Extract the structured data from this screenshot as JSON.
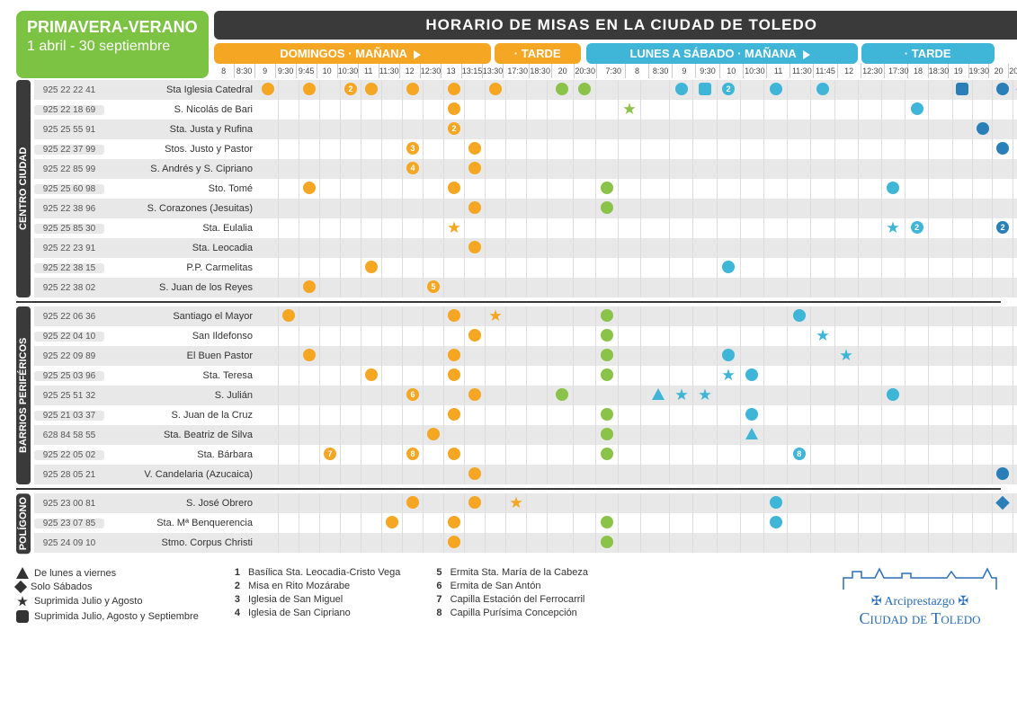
{
  "season": {
    "title": "PRIMAVERA-VERANO",
    "range": "1 abril - 30 septiembre"
  },
  "mainTitle": "HORARIO DE MISAS EN LA CIUDAD DE TOLEDO",
  "headers": {
    "dom": "DOMINGOS",
    "wk": "LUNES A SÁBADO",
    "morning": "MAÑANA",
    "afternoon": "TARDE"
  },
  "colors": {
    "orange": "#f5a623",
    "green": "#7cc243",
    "greenDot": "#8bc34a",
    "blue": "#3fb5d8",
    "blueD": "#2a7fb8",
    "dark": "#3a3a3a"
  },
  "times": {
    "dom_m": [
      "8",
      "8:30",
      "9",
      "9:30",
      "9:45",
      "10",
      "10:30",
      "11",
      "11:30",
      "12",
      "12:30",
      "13",
      "13:15",
      "13:30"
    ],
    "dom_t": [
      "17:30",
      "18:30",
      "20",
      "20:30"
    ],
    "wk_m": [
      "7:30",
      "8",
      "8:30",
      "9",
      "9:30",
      "10",
      "10:30",
      "11",
      "11:30",
      "11:45",
      "12",
      "12:30"
    ],
    "wk_t": [
      "17:30",
      "18",
      "18:30",
      "19",
      "19:30",
      "20",
      "20:30"
    ]
  },
  "colWidths": {
    "dom_m": 22,
    "dom_t": 24,
    "wk_m": 25.2,
    "wk_t": 21.4,
    "gap1": 4,
    "gap2": 6,
    "gap3": 4
  },
  "sections": [
    {
      "label": "CENTRO CIUDAD",
      "rows": [
        {
          "phone": "925 22 22 41",
          "name": "Sta Iglesia Catedral",
          "marks": [
            {
              "t": "dom_m",
              "i": 0,
              "c": "o"
            },
            {
              "t": "dom_m",
              "i": 2,
              "c": "o"
            },
            {
              "t": "dom_m",
              "i": 4,
              "c": "o",
              "n": "2"
            },
            {
              "t": "dom_m",
              "i": 5,
              "c": "o"
            },
            {
              "t": "dom_m",
              "i": 7,
              "c": "o"
            },
            {
              "t": "dom_m",
              "i": 9,
              "c": "o"
            },
            {
              "t": "dom_m",
              "i": 11,
              "c": "o"
            },
            {
              "t": "dom_t",
              "i": 0,
              "c": "g"
            },
            {
              "t": "dom_t",
              "i": 1,
              "c": "g"
            },
            {
              "t": "wk_m",
              "i": 1,
              "c": "b"
            },
            {
              "t": "wk_m",
              "i": 2,
              "c": "b",
              "s": "sq"
            },
            {
              "t": "wk_m",
              "i": 3,
              "c": "b",
              "n": "2"
            },
            {
              "t": "wk_m",
              "i": 5,
              "c": "b"
            },
            {
              "t": "wk_m",
              "i": 7,
              "c": "b"
            },
            {
              "t": "wk_t",
              "i": 1,
              "c": "bd",
              "s": "sq"
            },
            {
              "t": "wk_t",
              "i": 3,
              "c": "bd"
            },
            {
              "t": "wk_t",
              "i": 4,
              "c": "bd",
              "s": "dia",
              "n": "1"
            }
          ]
        },
        {
          "phone": "925 22 18 69",
          "name": "S. Nicolás de Bari",
          "marks": [
            {
              "t": "dom_m",
              "i": 9,
              "c": "o"
            },
            {
              "t": "dom_t",
              "i": 3,
              "c": "g",
              "s": "star"
            },
            {
              "t": "wk_m",
              "i": 11,
              "c": "b"
            },
            {
              "t": "wk_t",
              "i": 6,
              "c": "bd",
              "s": "star"
            }
          ]
        },
        {
          "phone": "925 25 55 91",
          "name": "Sta. Justa y Rufina",
          "marks": [
            {
              "t": "dom_m",
              "i": 9,
              "c": "o",
              "n": "2"
            },
            {
              "t": "wk_t",
              "i": 2,
              "c": "bd"
            }
          ]
        },
        {
          "phone": "925 22 37 99",
          "name": "Stos. Justo y Pastor",
          "marks": [
            {
              "t": "dom_m",
              "i": 7,
              "c": "o",
              "n": "3"
            },
            {
              "t": "dom_m",
              "i": 10,
              "c": "o"
            },
            {
              "t": "wk_t",
              "i": 3,
              "c": "bd"
            }
          ]
        },
        {
          "phone": "925 22 85 99",
          "name": "S. Andrés y S. Cipriano",
          "marks": [
            {
              "t": "dom_m",
              "i": 7,
              "c": "o",
              "n": "4"
            },
            {
              "t": "dom_m",
              "i": 10,
              "c": "o"
            },
            {
              "t": "wk_t",
              "i": 4,
              "c": "bd"
            }
          ]
        },
        {
          "phone": "925 25 60 98",
          "name": "Sto. Tomé",
          "marks": [
            {
              "t": "dom_m",
              "i": 2,
              "c": "o"
            },
            {
              "t": "dom_m",
              "i": 9,
              "c": "o"
            },
            {
              "t": "dom_t",
              "i": 2,
              "c": "g"
            },
            {
              "t": "wk_m",
              "i": 10,
              "c": "b"
            },
            {
              "t": "wk_t",
              "i": 5,
              "c": "bd"
            }
          ]
        },
        {
          "phone": "925 22 38 96",
          "name": "S. Corazones (Jesuitas)",
          "marks": [
            {
              "t": "dom_m",
              "i": 10,
              "c": "o"
            },
            {
              "t": "dom_t",
              "i": 2,
              "c": "g"
            },
            {
              "t": "wk_t",
              "i": 5,
              "c": "bd"
            }
          ]
        },
        {
          "phone": "925 25 85 30",
          "name": "Sta. Eulalia",
          "marks": [
            {
              "t": "dom_m",
              "i": 9,
              "c": "o",
              "n": "2",
              "s": "star"
            },
            {
              "t": "wk_m",
              "i": 10,
              "c": "b",
              "s": "star"
            },
            {
              "t": "wk_m",
              "i": 11,
              "c": "b",
              "n": "2"
            },
            {
              "t": "wk_t",
              "i": 3,
              "c": "bd",
              "n": "2"
            }
          ]
        },
        {
          "phone": "925 22 23 91",
          "name": "Sta. Leocadia",
          "marks": [
            {
              "t": "dom_m",
              "i": 10,
              "c": "o"
            }
          ]
        },
        {
          "phone": "925 22 38 15",
          "name": "P.P. Carmelitas",
          "marks": [
            {
              "t": "dom_m",
              "i": 5,
              "c": "o"
            },
            {
              "t": "wk_m",
              "i": 3,
              "c": "b"
            }
          ]
        },
        {
          "phone": "925 22 38 02",
          "name": "S. Juan de los Reyes",
          "marks": [
            {
              "t": "dom_m",
              "i": 2,
              "c": "o"
            },
            {
              "t": "dom_m",
              "i": 8,
              "c": "o",
              "n": "5"
            },
            {
              "t": "wk_t",
              "i": 5,
              "c": "bd"
            }
          ]
        }
      ]
    },
    {
      "label": "BARRIOS PERIFÉRICOS",
      "rows": [
        {
          "phone": "925 22 06 36",
          "name": "Santiago el Mayor",
          "marks": [
            {
              "t": "dom_m",
              "i": 1,
              "c": "o"
            },
            {
              "t": "dom_m",
              "i": 9,
              "c": "o"
            },
            {
              "t": "dom_m",
              "i": 11,
              "c": "o",
              "s": "star"
            },
            {
              "t": "dom_t",
              "i": 2,
              "c": "g"
            },
            {
              "t": "wk_m",
              "i": 6,
              "c": "b"
            },
            {
              "t": "wk_t",
              "i": 5,
              "c": "bd"
            }
          ]
        },
        {
          "phone": "925 22 04 10",
          "name": "San Ildefonso",
          "marks": [
            {
              "t": "dom_m",
              "i": 10,
              "c": "o"
            },
            {
              "t": "dom_t",
              "i": 2,
              "c": "g"
            },
            {
              "t": "wk_m",
              "i": 7,
              "c": "b",
              "s": "star"
            },
            {
              "t": "wk_t",
              "i": 5,
              "c": "bd"
            }
          ]
        },
        {
          "phone": "925 22 09 89",
          "name": "El Buen Pastor",
          "marks": [
            {
              "t": "dom_m",
              "i": 2,
              "c": "o"
            },
            {
              "t": "dom_m",
              "i": 9,
              "c": "o"
            },
            {
              "t": "dom_t",
              "i": 2,
              "c": "g"
            },
            {
              "t": "wk_m",
              "i": 3,
              "c": "b"
            },
            {
              "t": "wk_m",
              "i": 8,
              "c": "b",
              "s": "star"
            },
            {
              "t": "wk_t",
              "i": 5,
              "c": "bd"
            }
          ]
        },
        {
          "phone": "925 25 03 96",
          "name": "Sta. Teresa",
          "marks": [
            {
              "t": "dom_m",
              "i": 5,
              "c": "o"
            },
            {
              "t": "dom_m",
              "i": 9,
              "c": "o"
            },
            {
              "t": "dom_t",
              "i": 2,
              "c": "g"
            },
            {
              "t": "wk_m",
              "i": 3,
              "c": "b",
              "s": "star"
            },
            {
              "t": "wk_m",
              "i": 4,
              "c": "b"
            },
            {
              "t": "wk_t",
              "i": 5,
              "c": "bd"
            }
          ]
        },
        {
          "phone": "925 25 51 32",
          "name": "S. Julián",
          "marks": [
            {
              "t": "dom_m",
              "i": 7,
              "c": "o",
              "n": "6"
            },
            {
              "t": "dom_m",
              "i": 10,
              "c": "o"
            },
            {
              "t": "dom_t",
              "i": 0,
              "c": "g"
            },
            {
              "t": "wk_m",
              "i": 0,
              "c": "b",
              "s": "tri"
            },
            {
              "t": "wk_m",
              "i": 1,
              "c": "b",
              "s": "star"
            },
            {
              "t": "wk_m",
              "i": 2,
              "c": "b",
              "s": "star"
            },
            {
              "t": "wk_m",
              "i": 10,
              "c": "b"
            },
            {
              "t": "wk_t",
              "i": 5,
              "c": "bd"
            }
          ]
        },
        {
          "phone": "925 21 03 37",
          "name": "S. Juan de la Cruz",
          "marks": [
            {
              "t": "dom_m",
              "i": 9,
              "c": "o"
            },
            {
              "t": "dom_t",
              "i": 2,
              "c": "g"
            },
            {
              "t": "wk_m",
              "i": 4,
              "c": "b"
            },
            {
              "t": "wk_t",
              "i": 5,
              "c": "bd"
            }
          ]
        },
        {
          "phone": "628 84 58 55",
          "name": "Sta. Beatriz de Silva",
          "marks": [
            {
              "t": "dom_m",
              "i": 8,
              "c": "o"
            },
            {
              "t": "dom_t",
              "i": 2,
              "c": "g"
            },
            {
              "t": "wk_m",
              "i": 4,
              "c": "b",
              "s": "tri"
            },
            {
              "t": "wk_t",
              "i": 5,
              "c": "bd"
            }
          ]
        },
        {
          "phone": "925 22 05 02",
          "name": "Sta. Bárbara",
          "marks": [
            {
              "t": "dom_m",
              "i": 3,
              "c": "o",
              "n": "7"
            },
            {
              "t": "dom_m",
              "i": 7,
              "c": "o",
              "n": "8"
            },
            {
              "t": "dom_m",
              "i": 9,
              "c": "o"
            },
            {
              "t": "dom_t",
              "i": 2,
              "c": "g"
            },
            {
              "t": "wk_m",
              "i": 6,
              "c": "b",
              "n": "8"
            },
            {
              "t": "wk_t",
              "i": 5,
              "c": "bd"
            }
          ]
        },
        {
          "phone": "925 28 05 21",
          "name": "V. Candelaria (Azucaica)",
          "marks": [
            {
              "t": "dom_m",
              "i": 10,
              "c": "o"
            },
            {
              "t": "wk_t",
              "i": 3,
              "c": "bd"
            }
          ]
        }
      ]
    },
    {
      "label": "POLÍGONO",
      "rows": [
        {
          "phone": "925 23 00 81",
          "name": "S. José Obrero",
          "marks": [
            {
              "t": "dom_m",
              "i": 7,
              "c": "o"
            },
            {
              "t": "dom_m",
              "i": 10,
              "c": "o"
            },
            {
              "t": "dom_m",
              "i": 12,
              "c": "o",
              "s": "star"
            },
            {
              "t": "wk_m",
              "i": 5,
              "c": "b"
            },
            {
              "t": "wk_t",
              "i": 3,
              "c": "bd",
              "s": "dia"
            }
          ]
        },
        {
          "phone": "925 23 07 85",
          "name": "Sta. Mª Benquerencia",
          "marks": [
            {
              "t": "dom_m",
              "i": 6,
              "c": "o"
            },
            {
              "t": "dom_m",
              "i": 9,
              "c": "o"
            },
            {
              "t": "dom_t",
              "i": 2,
              "c": "g"
            },
            {
              "t": "wk_m",
              "i": 5,
              "c": "b"
            },
            {
              "t": "wk_t",
              "i": 5,
              "c": "bd"
            }
          ]
        },
        {
          "phone": "925 24 09 10",
          "name": "Stmo. Corpus Christi",
          "marks": [
            {
              "t": "dom_m",
              "i": 9,
              "c": "o"
            },
            {
              "t": "dom_t",
              "i": 2,
              "c": "g"
            },
            {
              "t": "wk_t",
              "i": 5,
              "c": "bd"
            }
          ]
        }
      ]
    }
  ],
  "legend": {
    "shapes": [
      {
        "s": "tri",
        "label": "De lunes a viernes"
      },
      {
        "s": "dia",
        "label": "Solo Sábados"
      },
      {
        "s": "star",
        "label": "Suprimida Julio y Agosto"
      },
      {
        "s": "sq",
        "label": "Suprimida Julio, Agosto y Septiembre"
      }
    ],
    "notes1": [
      {
        "n": "1",
        "label": "Basílica Sta. Leocadia-Cristo Vega"
      },
      {
        "n": "2",
        "label": "Misa en Rito Mozárabe"
      },
      {
        "n": "3",
        "label": "Iglesia de San Miguel"
      },
      {
        "n": "4",
        "label": "Iglesia de San Cipriano"
      }
    ],
    "notes2": [
      {
        "n": "5",
        "label": "Ermita Sta. María de la Cabeza"
      },
      {
        "n": "6",
        "label": "Ermita de San Antón"
      },
      {
        "n": "7",
        "label": "Capilla Estación del Ferrocarril"
      },
      {
        "n": "8",
        "label": "Capilla Purísima Concepción"
      }
    ]
  },
  "logo": {
    "l1": "✠ Arciprestazgo ✠",
    "l2": "Ciudad de Toledo"
  }
}
